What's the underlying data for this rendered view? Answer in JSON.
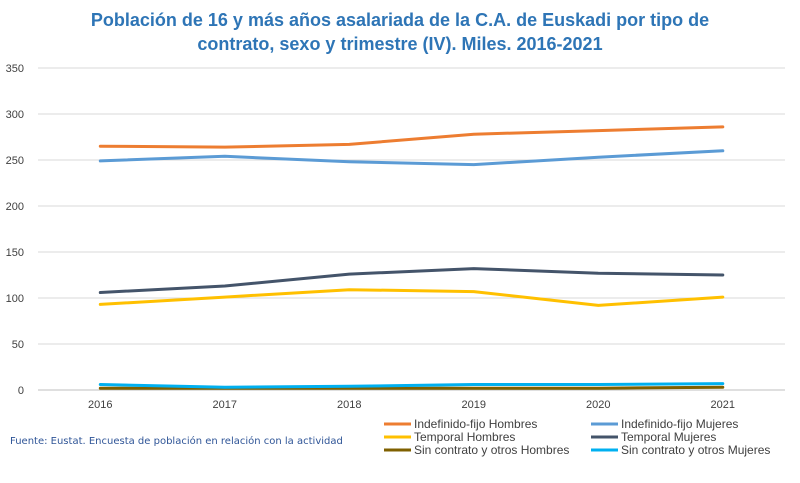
{
  "chart_data": {
    "type": "line",
    "title": "Población de 16 y más años asalariada de la C.A. de Euskadi por tipo de contrato, sexo y trimestre (IV). Miles. 2016-2021",
    "title_lines": [
      "Población de 16 y más años asalariada de la C.A. de Euskadi por tipo de",
      "contrato, sexo y trimestre (IV). Miles. 2016-2021"
    ],
    "xlabel": "",
    "ylabel": "",
    "categories": [
      "2016",
      "2017",
      "2018",
      "2019",
      "2020",
      "2021"
    ],
    "ylim": [
      0,
      350
    ],
    "yticks": [
      0,
      50,
      100,
      150,
      200,
      250,
      300,
      350
    ],
    "grid": true,
    "legend_position": "bottom-right",
    "series": [
      {
        "name": "Indefinido-fijo Hombres",
        "color": "#ed7d31",
        "values": [
          265,
          264,
          267,
          278,
          282,
          286
        ]
      },
      {
        "name": "Indefinido-fijo Mujeres",
        "color": "#5b9bd5",
        "values": [
          249,
          254,
          248,
          245,
          253,
          260
        ]
      },
      {
        "name": "Temporal Hombres",
        "color": "#ffc000",
        "values": [
          93,
          101,
          109,
          107,
          92,
          101
        ]
      },
      {
        "name": "Temporal Mujeres",
        "color": "#44546a",
        "values": [
          106,
          113,
          126,
          132,
          127,
          125
        ]
      },
      {
        "name": "Sin contrato y otros Hombres",
        "color": "#7f6000",
        "values": [
          2,
          2,
          2,
          2,
          2,
          3
        ]
      },
      {
        "name": "Sin contrato y otros Mujeres",
        "color": "#00b0f0",
        "values": [
          6,
          3,
          4,
          6,
          6,
          7
        ]
      }
    ]
  },
  "source": "Fuente: Eustat. Encuesta de población en relación con la actividad"
}
